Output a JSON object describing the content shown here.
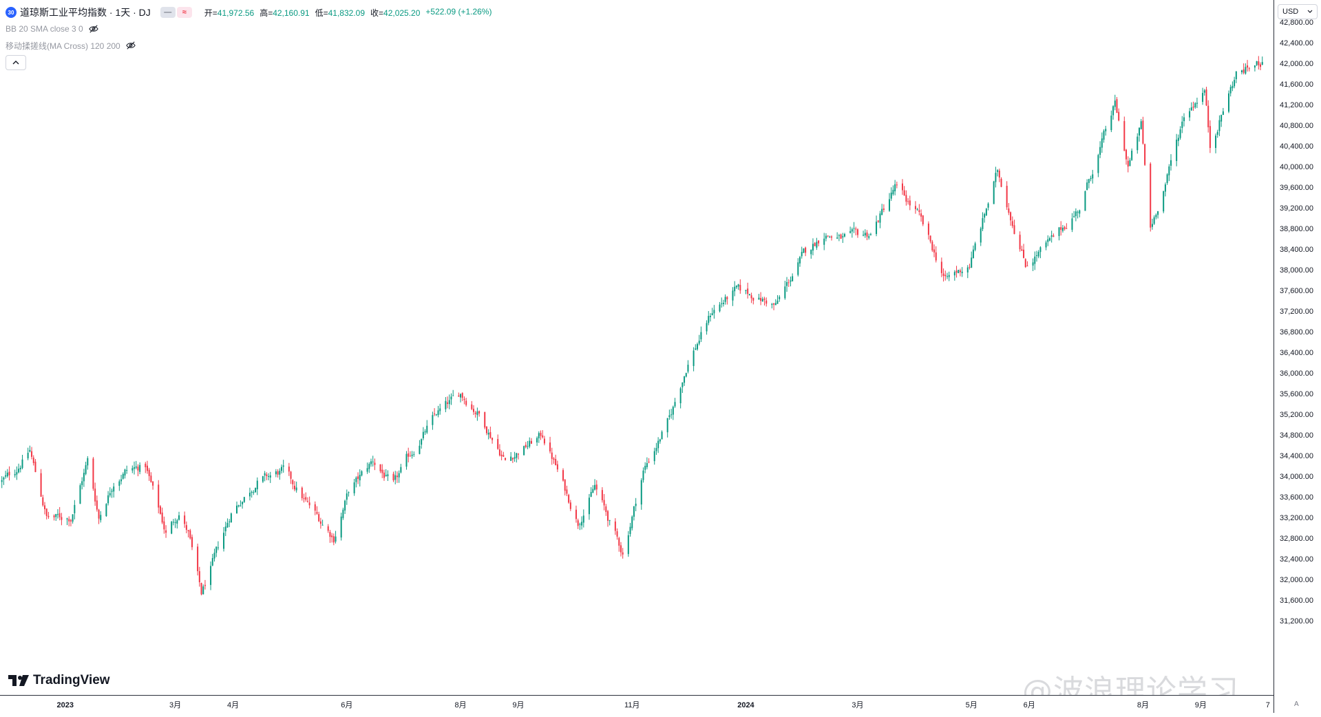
{
  "legend": {
    "symbol_badge": "30",
    "title": "道琼斯工业平均指数 · 1天 · DJ",
    "pill_left": "—",
    "pill_right": "≈",
    "open_label": "开=",
    "open": "41,972.56",
    "high_label": "高=",
    "high": "42,160.91",
    "low_label": "低=",
    "low": "41,832.09",
    "close_label": "收=",
    "close": "42,025.20",
    "change": "+522.09 (+1.26%)",
    "indicator_bb": "BB 20 SMA close 3 0",
    "indicator_ma": "移动揉搓线(MA Cross) 120 200"
  },
  "currency_button": "USD",
  "auto_button": "A",
  "logo_text": "TradingView",
  "watermark": "@波浪理论学习",
  "colors": {
    "up": "#089981",
    "down": "#f23645",
    "axis_text": "#131722",
    "axis_line": "#2a2e39"
  },
  "chart_data": {
    "type": "candlestick",
    "title": "",
    "ylim": [
      31000,
      43000
    ],
    "price_ticks": [
      "42,800.00",
      "42,400.00",
      "42,000.00",
      "41,600.00",
      "41,200.00",
      "40,800.00",
      "40,400.00",
      "40,000.00",
      "39,600.00",
      "39,200.00",
      "38,800.00",
      "38,400.00",
      "38,000.00",
      "37,600.00",
      "37,200.00",
      "36,800.00",
      "36,400.00",
      "36,000.00",
      "35,600.00",
      "35,200.00",
      "34,800.00",
      "34,400.00",
      "34,000.00",
      "33,600.00",
      "33,200.00",
      "32,800.00",
      "32,400.00",
      "32,000.00",
      "31,600.00",
      "31,200.00"
    ],
    "time_ticks": [
      {
        "label": "2023",
        "date": "2023-01-01"
      },
      {
        "label": "3月",
        "date": "2023-03-01"
      },
      {
        "label": "4月",
        "date": "2023-04-01"
      },
      {
        "label": "6月",
        "date": "2023-06-01"
      },
      {
        "label": "8月",
        "date": "2023-08-01"
      },
      {
        "label": "9月",
        "date": "2023-09-01"
      },
      {
        "label": "11月",
        "date": "2023-11-01"
      },
      {
        "label": "2024",
        "date": "2024-01-01"
      },
      {
        "label": "3月",
        "date": "2024-03-01"
      },
      {
        "label": "5月",
        "date": "2024-05-01"
      },
      {
        "label": "6月",
        "date": "2024-06-01"
      },
      {
        "label": "8月",
        "date": "2024-08-01"
      },
      {
        "label": "9月",
        "date": "2024-09-01"
      },
      {
        "label": "7",
        "date": "2024-10-07"
      }
    ],
    "x_range": [
      "2022-11-27",
      "2024-10-10"
    ],
    "series": [
      {
        "anchors": [
          {
            "date": "2022-11-28",
            "close": 33900
          },
          {
            "date": "2022-12-05",
            "close": 34100
          },
          {
            "date": "2022-12-13",
            "close": 34500
          },
          {
            "date": "2022-12-22",
            "close": 33200
          },
          {
            "date": "2023-01-04",
            "close": 33200
          },
          {
            "date": "2023-01-13",
            "close": 34300
          },
          {
            "date": "2023-01-19",
            "close": 33200
          },
          {
            "date": "2023-01-27",
            "close": 33900
          },
          {
            "date": "2023-02-02",
            "close": 34100
          },
          {
            "date": "2023-02-13",
            "close": 34200
          },
          {
            "date": "2023-02-24",
            "close": 32900
          },
          {
            "date": "2023-03-03",
            "close": 33300
          },
          {
            "date": "2023-03-08",
            "close": 32900
          },
          {
            "date": "2023-03-15",
            "close": 31700
          },
          {
            "date": "2023-03-31",
            "close": 33300
          },
          {
            "date": "2023-04-14",
            "close": 33900
          },
          {
            "date": "2023-04-28",
            "close": 34100
          },
          {
            "date": "2023-05-10",
            "close": 33500
          },
          {
            "date": "2023-05-25",
            "close": 32800
          },
          {
            "date": "2023-06-02",
            "close": 33700
          },
          {
            "date": "2023-06-15",
            "close": 34300
          },
          {
            "date": "2023-06-26",
            "close": 33800
          },
          {
            "date": "2023-07-03",
            "close": 34300
          },
          {
            "date": "2023-07-19",
            "close": 35200
          },
          {
            "date": "2023-08-01",
            "close": 35600
          },
          {
            "date": "2023-08-11",
            "close": 35200
          },
          {
            "date": "2023-08-25",
            "close": 34300
          },
          {
            "date": "2023-09-14",
            "close": 34800
          },
          {
            "date": "2023-09-21",
            "close": 34200
          },
          {
            "date": "2023-10-03",
            "close": 33100
          },
          {
            "date": "2023-10-12",
            "close": 33800
          },
          {
            "date": "2023-10-27",
            "close": 32500
          },
          {
            "date": "2023-11-07",
            "close": 34100
          },
          {
            "date": "2023-11-21",
            "close": 35100
          },
          {
            "date": "2023-12-01",
            "close": 36200
          },
          {
            "date": "2023-12-14",
            "close": 37200
          },
          {
            "date": "2023-12-27",
            "close": 37600
          },
          {
            "date": "2024-01-05",
            "close": 37500
          },
          {
            "date": "2024-01-17",
            "close": 37300
          },
          {
            "date": "2024-02-01",
            "close": 38300
          },
          {
            "date": "2024-02-12",
            "close": 38700
          },
          {
            "date": "2024-02-21",
            "close": 38600
          },
          {
            "date": "2024-03-08",
            "close": 38700
          },
          {
            "date": "2024-03-21",
            "close": 39600
          },
          {
            "date": "2024-04-02",
            "close": 39100
          },
          {
            "date": "2024-04-17",
            "close": 37800
          },
          {
            "date": "2024-04-30",
            "close": 38100
          },
          {
            "date": "2024-05-15",
            "close": 39900
          },
          {
            "date": "2024-05-30",
            "close": 38100
          },
          {
            "date": "2024-06-14",
            "close": 38600
          },
          {
            "date": "2024-06-28",
            "close": 39200
          },
          {
            "date": "2024-07-17",
            "close": 41200
          },
          {
            "date": "2024-07-24",
            "close": 40000
          },
          {
            "date": "2024-07-31",
            "close": 40800
          },
          {
            "date": "2024-08-05",
            "close": 38800
          },
          {
            "date": "2024-08-14",
            "close": 39800
          },
          {
            "date": "2024-08-23",
            "close": 41000
          },
          {
            "date": "2024-09-03",
            "close": 41500
          },
          {
            "date": "2024-09-06",
            "close": 40400
          },
          {
            "date": "2024-09-10",
            "close": 40800
          },
          {
            "date": "2024-09-20",
            "close": 41800
          },
          {
            "date": "2024-10-04",
            "close": 42025
          }
        ]
      }
    ]
  }
}
